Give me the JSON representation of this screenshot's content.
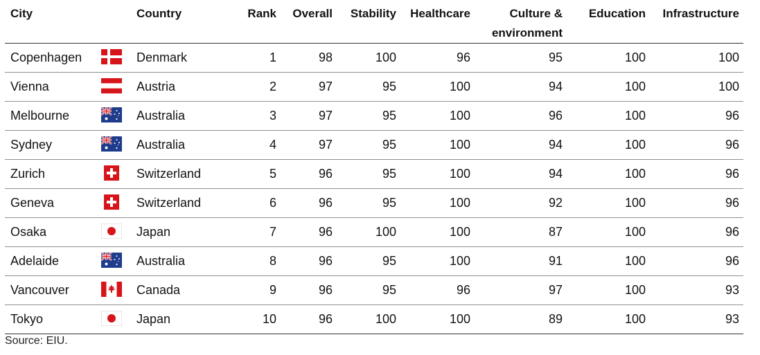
{
  "chart_data": {
    "type": "table",
    "columns": [
      "City",
      "Country",
      "Rank",
      "Overall",
      "Stability",
      "Healthcare",
      "Culture & environment",
      "Education",
      "Infrastructure"
    ],
    "rows": [
      {
        "city": "Copenhagen",
        "flag": "denmark-flag",
        "country": "Denmark",
        "rank": "1",
        "overall": "98",
        "stability": "100",
        "healthcare": "96",
        "culture": "95",
        "education": "100",
        "infrastructure": "100"
      },
      {
        "city": "Vienna",
        "flag": "austria-flag",
        "country": "Austria",
        "rank": "2",
        "overall": "97",
        "stability": "95",
        "healthcare": "100",
        "culture": "94",
        "education": "100",
        "infrastructure": "100"
      },
      {
        "city": "Melbourne",
        "flag": "australia-flag",
        "country": "Australia",
        "rank": "3",
        "overall": "97",
        "stability": "95",
        "healthcare": "100",
        "culture": "96",
        "education": "100",
        "infrastructure": "96"
      },
      {
        "city": "Sydney",
        "flag": "australia-flag",
        "country": "Australia",
        "rank": "4",
        "overall": "97",
        "stability": "95",
        "healthcare": "100",
        "culture": "94",
        "education": "100",
        "infrastructure": "96"
      },
      {
        "city": "Zurich",
        "flag": "switzerland-flag",
        "country": "Switzerland",
        "rank": "5",
        "overall": "96",
        "stability": "95",
        "healthcare": "100",
        "culture": "94",
        "education": "100",
        "infrastructure": "96"
      },
      {
        "city": "Geneva",
        "flag": "switzerland-flag",
        "country": "Switzerland",
        "rank": "6",
        "overall": "96",
        "stability": "95",
        "healthcare": "100",
        "culture": "92",
        "education": "100",
        "infrastructure": "96"
      },
      {
        "city": "Osaka",
        "flag": "japan-flag",
        "country": "Japan",
        "rank": "7",
        "overall": "96",
        "stability": "100",
        "healthcare": "100",
        "culture": "87",
        "education": "100",
        "infrastructure": "96"
      },
      {
        "city": "Adelaide",
        "flag": "australia-flag",
        "country": "Australia",
        "rank": "8",
        "overall": "96",
        "stability": "95",
        "healthcare": "100",
        "culture": "91",
        "education": "100",
        "infrastructure": "96"
      },
      {
        "city": "Vancouver",
        "flag": "canada-flag",
        "country": "Canada",
        "rank": "9",
        "overall": "96",
        "stability": "95",
        "healthcare": "96",
        "culture": "97",
        "education": "100",
        "infrastructure": "93"
      },
      {
        "city": "Tokyo",
        "flag": "japan-flag",
        "country": "Japan",
        "rank": "10",
        "overall": "96",
        "stability": "100",
        "healthcare": "100",
        "culture": "89",
        "education": "100",
        "infrastructure": "93"
      }
    ]
  },
  "source": "Source: EIU.",
  "colors": {
    "flag_red": "#d7141a",
    "flag_blue": "#1f3c8c",
    "rule_dark": "#333333",
    "rule_light": "#8f8f8f"
  }
}
